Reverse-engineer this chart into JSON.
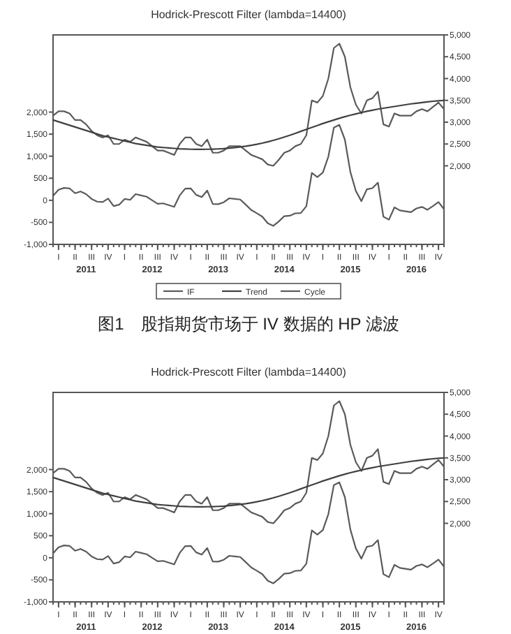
{
  "chart_data": [
    {
      "type": "line",
      "title": "Hodrick-Prescott Filter (lambda=14400)",
      "x": [
        "2011-01",
        "2011-02",
        "2011-03",
        "2011-04",
        "2011-05",
        "2011-06",
        "2011-07",
        "2011-08",
        "2011-09",
        "2011-10",
        "2011-11",
        "2011-12",
        "2012-01",
        "2012-02",
        "2012-03",
        "2012-04",
        "2012-05",
        "2012-06",
        "2012-07",
        "2012-08",
        "2012-09",
        "2012-10",
        "2012-11",
        "2012-12",
        "2013-01",
        "2013-02",
        "2013-03",
        "2013-04",
        "2013-05",
        "2013-06",
        "2013-07",
        "2013-08",
        "2013-09",
        "2013-10",
        "2013-11",
        "2013-12",
        "2014-01",
        "2014-02",
        "2014-03",
        "2014-04",
        "2014-05",
        "2014-06",
        "2014-07",
        "2014-08",
        "2014-09",
        "2014-10",
        "2014-11",
        "2014-12",
        "2015-01",
        "2015-02",
        "2015-03",
        "2015-04",
        "2015-05",
        "2015-06",
        "2015-07",
        "2015-08",
        "2015-09",
        "2015-10",
        "2015-11",
        "2015-12",
        "2016-01",
        "2016-02",
        "2016-03",
        "2016-04",
        "2016-05",
        "2016-06",
        "2016-07",
        "2016-08",
        "2016-09",
        "2016-10",
        "2016-11",
        "2016-12"
      ],
      "series": [
        {
          "name": "IF",
          "color": "#5a5a5a",
          "axis": "y2",
          "values": [
            3150,
            3250,
            3250,
            3200,
            3050,
            3050,
            2950,
            2800,
            2700,
            2650,
            2700,
            2500,
            2500,
            2600,
            2550,
            2650,
            2600,
            2550,
            2450,
            2350,
            2350,
            2300,
            2250,
            2500,
            2650,
            2650,
            2500,
            2450,
            2600,
            2300,
            2300,
            2350,
            2450,
            2450,
            2450,
            2350,
            2250,
            2200,
            2150,
            2030,
            2000,
            2140,
            2300,
            2350,
            2450,
            2500,
            2700,
            3500,
            3450,
            3600,
            4000,
            4700,
            4800,
            4500,
            3800,
            3400,
            3200,
            3500,
            3550,
            3700,
            2950,
            2900,
            3200,
            3150,
            3150,
            3150,
            3250,
            3300,
            3250,
            3350,
            3450,
            3300
          ]
        },
        {
          "name": "Trend",
          "color": "#404040",
          "axis": "y2",
          "values": [
            3050,
            3010,
            2970,
            2930,
            2890,
            2850,
            2810,
            2770,
            2730,
            2690,
            2660,
            2630,
            2600,
            2570,
            2540,
            2510,
            2490,
            2470,
            2450,
            2430,
            2420,
            2410,
            2400,
            2390,
            2385,
            2380,
            2378,
            2378,
            2380,
            2383,
            2388,
            2395,
            2405,
            2418,
            2433,
            2450,
            2470,
            2493,
            2520,
            2550,
            2583,
            2620,
            2660,
            2700,
            2745,
            2790,
            2835,
            2880,
            2925,
            2970,
            3010,
            3050,
            3090,
            3125,
            3160,
            3190,
            3220,
            3250,
            3275,
            3300,
            3320,
            3340,
            3360,
            3380,
            3400,
            3420,
            3435,
            3450,
            3465,
            3480,
            3490,
            3500
          ]
        },
        {
          "name": "Cycle",
          "color": "#5a5a5a",
          "axis": "y",
          "values": [
            100,
            240,
            280,
            270,
            160,
            200,
            140,
            30,
            -30,
            -40,
            40,
            -130,
            -100,
            30,
            10,
            140,
            110,
            80,
            0,
            -80,
            -70,
            -110,
            -150,
            110,
            265,
            270,
            122,
            72,
            220,
            -83,
            -88,
            -45,
            45,
            32,
            17,
            -100,
            -220,
            -293,
            -370,
            -520,
            -580,
            -480,
            -360,
            -350,
            -295,
            -290,
            -135,
            620,
            525,
            630,
            990,
            1650,
            1710,
            1375,
            640,
            210,
            -20,
            250,
            275,
            400,
            -370,
            -440,
            -160,
            -230,
            -250,
            -270,
            -185,
            -150,
            -215,
            -130,
            -40,
            -200
          ]
        }
      ],
      "xlim": [
        "2011-01",
        "2016-12"
      ],
      "xticks": [
        {
          "value": "2011-07",
          "label": "2011"
        },
        {
          "value": "2012-07",
          "label": "2012"
        },
        {
          "value": "2013-07",
          "label": "2013"
        },
        {
          "value": "2014-07",
          "label": "2014"
        },
        {
          "value": "2015-07",
          "label": "2015"
        },
        {
          "value": "2016-07",
          "label": "2016"
        }
      ],
      "ylim": [
        -1000,
        3750
      ],
      "yticks": [
        {
          "value": -1000,
          "label": "-1,000"
        },
        {
          "value": -500,
          "label": "-500"
        },
        0,
        {
          "value": 500,
          "label": "500"
        },
        {
          "value": 1000,
          "label": "1,000"
        },
        {
          "value": 1500,
          "label": "1,500"
        },
        {
          "value": 2000,
          "label": "2,000"
        }
      ],
      "y2lim": [
        200,
        5000
      ],
      "y2ticks": [
        {
          "value": 2000,
          "label": "2,000"
        },
        {
          "value": 2500,
          "label": "2,500"
        },
        {
          "value": 3000,
          "label": "3,000"
        },
        {
          "value": 3500,
          "label": "3,500"
        },
        {
          "value": 4000,
          "label": "4,000"
        },
        {
          "value": 4500,
          "label": "4,500"
        },
        {
          "value": 5000,
          "label": "5,000"
        }
      ],
      "legend": "bottom",
      "annotations": [
        "I",
        "II",
        "III",
        "IV",
        "I",
        "II",
        "III",
        "IV",
        "I",
        "II",
        "III",
        "IV",
        "I",
        "II",
        "III",
        "IV",
        "I",
        "II",
        "III",
        "IV",
        "I",
        "II",
        "III",
        "IV",
        "图1　股指期货市场于 IV 数据的 HP 滤波"
      ]
    },
    {
      "type": "line",
      "title": "Hodrick-Prescott Filter (lambda=14400)",
      "x": [
        "2011-01",
        "2011-02",
        "2011-03",
        "2011-04",
        "2011-05",
        "2011-06",
        "2011-07",
        "2011-08",
        "2011-09",
        "2011-10",
        "2011-11",
        "2011-12",
        "2012-01",
        "2012-02",
        "2012-03",
        "2012-04",
        "2012-05",
        "2012-06",
        "2012-07",
        "2012-08",
        "2012-09",
        "2012-10",
        "2012-11",
        "2012-12",
        "2013-01",
        "2013-02",
        "2013-03",
        "2013-04",
        "2013-05",
        "2013-06",
        "2013-07",
        "2013-08",
        "2013-09",
        "2013-10",
        "2013-11",
        "2013-12",
        "2014-01",
        "2014-02",
        "2014-03",
        "2014-04",
        "2014-05",
        "2014-06",
        "2014-07",
        "2014-08",
        "2014-09",
        "2014-10",
        "2014-11",
        "2014-12",
        "2015-01",
        "2015-02",
        "2015-03",
        "2015-04",
        "2015-05",
        "2015-06",
        "2015-07",
        "2015-08",
        "2015-09",
        "2015-10",
        "2015-11",
        "2015-12",
        "2016-01",
        "2016-02",
        "2016-03",
        "2016-04",
        "2016-05",
        "2016-06",
        "2016-07",
        "2016-08",
        "2016-09",
        "2016-10",
        "2016-11",
        "2016-12"
      ],
      "series": [
        {
          "color": "#5a5a5a",
          "axis": "y2",
          "values": [
            3150,
            3250,
            3250,
            3200,
            3050,
            3050,
            2950,
            2800,
            2700,
            2650,
            2700,
            2500,
            2500,
            2600,
            2550,
            2650,
            2600,
            2550,
            2450,
            2350,
            2350,
            2300,
            2250,
            2500,
            2650,
            2650,
            2500,
            2450,
            2600,
            2300,
            2300,
            2350,
            2450,
            2450,
            2450,
            2350,
            2250,
            2200,
            2150,
            2030,
            2000,
            2140,
            2300,
            2350,
            2450,
            2500,
            2700,
            3500,
            3450,
            3600,
            4000,
            4700,
            4800,
            4500,
            3800,
            3400,
            3200,
            3500,
            3550,
            3700,
            2950,
            2900,
            3200,
            3150,
            3150,
            3150,
            3250,
            3300,
            3250,
            3350,
            3450,
            3300
          ]
        },
        {
          "color": "#404040",
          "axis": "y2",
          "values": [
            3050,
            3010,
            2970,
            2930,
            2890,
            2850,
            2810,
            2770,
            2730,
            2690,
            2660,
            2630,
            2600,
            2570,
            2540,
            2510,
            2490,
            2470,
            2450,
            2430,
            2420,
            2410,
            2400,
            2390,
            2385,
            2380,
            2378,
            2378,
            2380,
            2383,
            2388,
            2395,
            2405,
            2418,
            2433,
            2450,
            2470,
            2493,
            2520,
            2550,
            2583,
            2620,
            2660,
            2700,
            2745,
            2790,
            2835,
            2880,
            2925,
            2970,
            3010,
            3050,
            3090,
            3125,
            3160,
            3190,
            3220,
            3250,
            3275,
            3300,
            3320,
            3340,
            3360,
            3380,
            3400,
            3420,
            3435,
            3450,
            3465,
            3480,
            3490,
            3500
          ]
        },
        {
          "color": "#5a5a5a",
          "axis": "y",
          "values": [
            100,
            240,
            280,
            270,
            160,
            200,
            140,
            30,
            -30,
            -40,
            40,
            -130,
            -100,
            30,
            10,
            140,
            110,
            80,
            0,
            -80,
            -70,
            -110,
            -150,
            110,
            265,
            270,
            122,
            72,
            220,
            -83,
            -88,
            -45,
            45,
            32,
            17,
            -100,
            -220,
            -293,
            -370,
            -520,
            -580,
            -480,
            -360,
            -350,
            -295,
            -290,
            -135,
            620,
            525,
            630,
            990,
            1650,
            1710,
            1375,
            640,
            210,
            -20,
            250,
            275,
            400,
            -370,
            -440,
            -160,
            -230,
            -250,
            -270,
            -185,
            -150,
            -215,
            -130,
            -40,
            -200
          ]
        }
      ],
      "xlim": [
        "2011-01",
        "2016-12"
      ],
      "xticks": [
        {
          "value": "2011-07",
          "label": "2011"
        },
        {
          "value": "2012-07",
          "label": "2012"
        },
        {
          "value": "2013-07",
          "label": "2013"
        },
        {
          "value": "2014-07",
          "label": "2014"
        },
        {
          "value": "2015-07",
          "label": "2015"
        },
        {
          "value": "2016-07",
          "label": "2016"
        }
      ],
      "ylim": [
        -1000,
        3750
      ],
      "yticks": [
        {
          "value": -1000,
          "label": "-1,000"
        },
        {
          "value": -500,
          "label": "-500"
        },
        0,
        {
          "value": 500,
          "label": "500"
        },
        {
          "value": 1000,
          "label": "1,000"
        },
        {
          "value": 1500,
          "label": "1,500"
        },
        {
          "value": 2000,
          "label": "2,000"
        }
      ],
      "y2lim": [
        200,
        5000
      ],
      "y2ticks": [
        {
          "value": 2000,
          "label": "2,000"
        },
        {
          "value": 2500,
          "label": "2,500"
        },
        {
          "value": 3000,
          "label": "3,000"
        },
        {
          "value": 3500,
          "label": "3,500"
        },
        {
          "value": 4000,
          "label": "4,000"
        },
        {
          "value": 4500,
          "label": "4,500"
        },
        {
          "value": 5000,
          "label": "5,000"
        }
      ],
      "annotations": [
        "I",
        "II",
        "III",
        "IV",
        "I",
        "II",
        "III",
        "IV",
        "I",
        "II",
        "III",
        "IV",
        "I",
        "II",
        "III",
        "IV",
        "I",
        "II",
        "III",
        "IV",
        "I",
        "II",
        "III",
        "IV"
      ]
    }
  ]
}
